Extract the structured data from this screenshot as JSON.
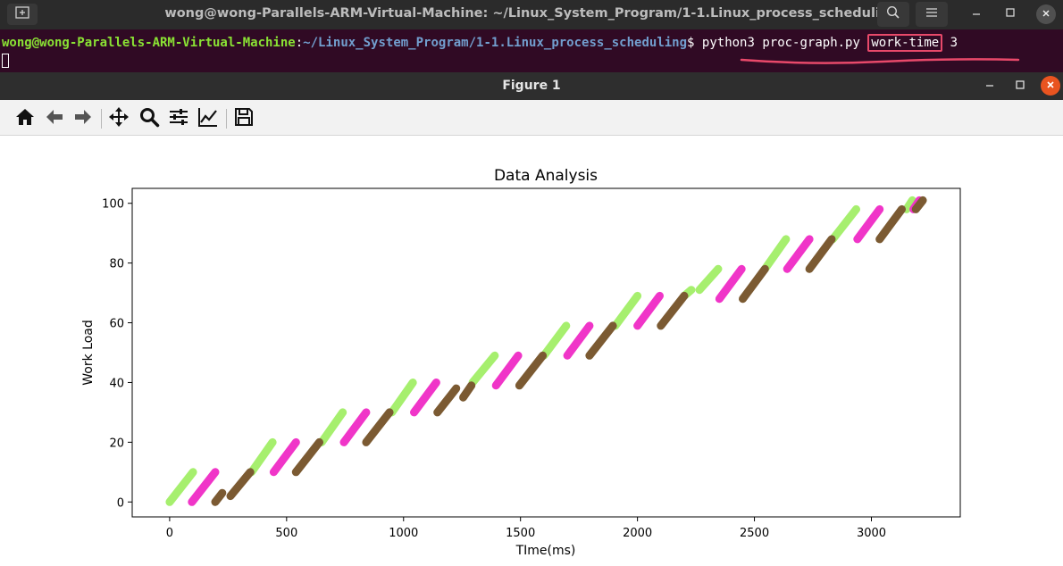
{
  "terminal": {
    "title": "wong@wong-Parallels-ARM-Virtual-Machine: ~/Linux_System_Program/1-1.Linux_process_scheduling",
    "prompt_user": "wong@wong-Parallels-ARM-Virtual-Machine",
    "prompt_sep": ":",
    "prompt_path": "~/Linux_System_Program/1-1.Linux_process_scheduling",
    "prompt_symbol": "$ ",
    "command": "python3 proc-graph.py",
    "argument": "work-time",
    "argument_count": "3",
    "annotation_color": "#e8496a"
  },
  "figure_window": {
    "title": "Figure 1",
    "toolbar": [
      "home-icon",
      "back-icon",
      "forward-icon",
      "pan-icon",
      "zoom-icon",
      "configure-subplots-icon",
      "edit-axis-icon",
      "save-icon"
    ]
  },
  "chart_data": {
    "type": "line",
    "title": "Data Analysis",
    "xlabel": "TIme(ms)",
    "ylabel": "Work Load",
    "xlim": [
      -160,
      3380
    ],
    "ylim": [
      -5,
      105
    ],
    "xticks": [
      "0",
      "500",
      "1000",
      "1500",
      "2000",
      "2500",
      "3000"
    ],
    "xtick_values": [
      0,
      500,
      1000,
      1500,
      2000,
      2500,
      3000
    ],
    "yticks": [
      "0",
      "20",
      "40",
      "60",
      "80",
      "100"
    ],
    "ytick_values": [
      0,
      20,
      40,
      60,
      80,
      100
    ],
    "grid": false,
    "series": [
      {
        "color": "#a6ef6e",
        "segments": [
          [
            [
              0,
              0
            ],
            [
              100,
              10
            ]
          ],
          [
            [
              350,
              10
            ],
            [
              440,
              20
            ]
          ],
          [
            [
              650,
              20
            ],
            [
              740,
              30
            ]
          ],
          [
            [
              950,
              30
            ],
            [
              1040,
              40
            ]
          ],
          [
            [
              1295,
              40
            ],
            [
              1390,
              49
            ]
          ],
          [
            [
              1600,
              49
            ],
            [
              1695,
              59
            ]
          ],
          [
            [
              1905,
              59
            ],
            [
              2000,
              69
            ]
          ],
          [
            [
              2200,
              69
            ],
            [
              2230,
              71
            ]
          ],
          [
            [
              2265,
              71
            ],
            [
              2345,
              78
            ]
          ],
          [
            [
              2545,
              78
            ],
            [
              2635,
              88
            ]
          ],
          [
            [
              2835,
              88
            ],
            [
              2935,
              98
            ]
          ],
          [
            [
              3150,
              98
            ],
            [
              3175,
              101
            ]
          ]
        ]
      },
      {
        "color": "#f035c8",
        "segments": [
          [
            [
              95,
              0
            ],
            [
              195,
              10
            ]
          ],
          [
            [
              445,
              10
            ],
            [
              540,
              20
            ]
          ],
          [
            [
              745,
              20
            ],
            [
              840,
              30
            ]
          ],
          [
            [
              1045,
              30
            ],
            [
              1140,
              40
            ]
          ],
          [
            [
              1395,
              39
            ],
            [
              1490,
              49
            ]
          ],
          [
            [
              1700,
              49
            ],
            [
              1795,
              59
            ]
          ],
          [
            [
              2000,
              59
            ],
            [
              2095,
              69
            ]
          ],
          [
            [
              2350,
              68
            ],
            [
              2445,
              78
            ]
          ],
          [
            [
              2640,
              78
            ],
            [
              2735,
              88
            ]
          ],
          [
            [
              2940,
              88
            ],
            [
              3035,
              98
            ]
          ],
          [
            [
              3180,
              98
            ],
            [
              3205,
              101
            ]
          ]
        ]
      },
      {
        "color": "#7b5a32",
        "segments": [
          [
            [
              195,
              0
            ],
            [
              225,
              3
            ]
          ],
          [
            [
              260,
              2
            ],
            [
              345,
              10
            ]
          ],
          [
            [
              540,
              10
            ],
            [
              640,
              20
            ]
          ],
          [
            [
              840,
              20
            ],
            [
              940,
              30
            ]
          ],
          [
            [
              1145,
              30
            ],
            [
              1225,
              38
            ]
          ],
          [
            [
              1255,
              35
            ],
            [
              1290,
              39
            ]
          ],
          [
            [
              1495,
              39
            ],
            [
              1595,
              49
            ]
          ],
          [
            [
              1795,
              49
            ],
            [
              1895,
              59
            ]
          ],
          [
            [
              2100,
              59
            ],
            [
              2200,
              69
            ]
          ],
          [
            [
              2450,
              68
            ],
            [
              2545,
              78
            ]
          ],
          [
            [
              2735,
              78
            ],
            [
              2830,
              88
            ]
          ],
          [
            [
              3035,
              88
            ],
            [
              3130,
              98
            ]
          ],
          [
            [
              3190,
              98
            ],
            [
              3220,
              101
            ]
          ]
        ]
      }
    ]
  }
}
